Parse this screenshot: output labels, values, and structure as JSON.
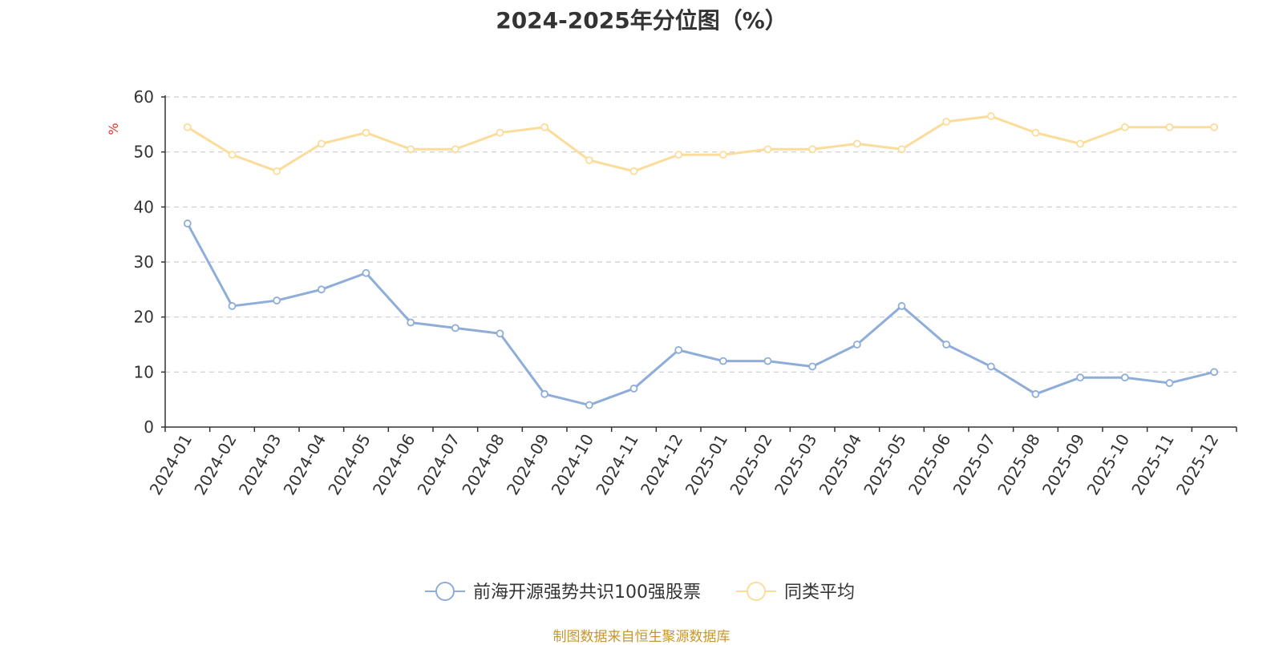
{
  "chart_data": {
    "type": "line",
    "title": "2024-2025年分位图（%）",
    "ylabel": "%",
    "ylim": [
      0,
      60
    ],
    "yticks": [
      0,
      10,
      20,
      30,
      40,
      50,
      60
    ],
    "categories": [
      "2024-01",
      "2024-02",
      "2024-03",
      "2024-04",
      "2024-05",
      "2024-06",
      "2024-07",
      "2024-08",
      "2024-09",
      "2024-10",
      "2024-11",
      "2024-12",
      "2025-01",
      "2025-02",
      "2025-03",
      "2025-04",
      "2025-05",
      "2025-06",
      "2025-07",
      "2025-08",
      "2025-09",
      "2025-10",
      "2025-11",
      "2025-12"
    ],
    "series": [
      {
        "name": "前海开源强势共识100强股票",
        "color": "#8eadd8",
        "values": [
          37,
          22,
          23,
          25,
          28,
          19,
          18,
          17,
          6,
          4,
          7,
          14,
          12,
          12,
          11,
          15,
          22,
          15,
          11,
          6,
          9,
          9,
          8,
          10
        ]
      },
      {
        "name": "同类平均",
        "color": "#fcdc9a",
        "values": [
          54.5,
          49.5,
          46.5,
          51.5,
          53.5,
          50.5,
          50.5,
          53.5,
          54.5,
          48.5,
          46.5,
          49.5,
          49.5,
          50.5,
          50.5,
          51.5,
          50.5,
          55.5,
          56.5,
          53.5,
          51.5,
          54.5,
          54.5,
          54.5
        ]
      }
    ],
    "grid": true,
    "legend": "bottom-center"
  },
  "source": "制图数据来自恒生聚源数据库",
  "colors": {
    "ylabel": "#e0332b",
    "source": "#c8962a",
    "axis": "#333333",
    "grid": "#cccccc"
  }
}
